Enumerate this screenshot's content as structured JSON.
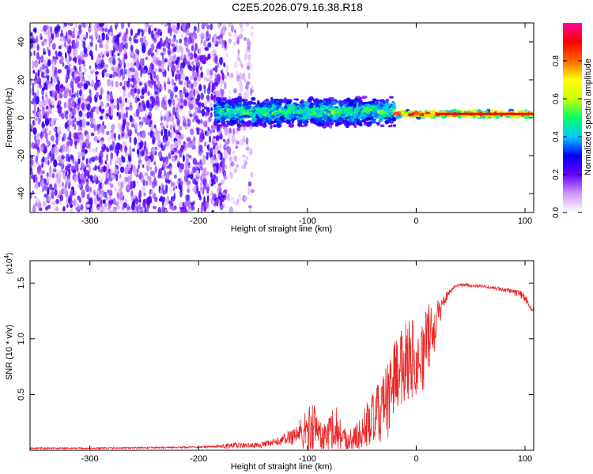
{
  "figure_title": "C2E5.2026.079.16.38.R18",
  "chart_data": [
    {
      "type": "heatmap",
      "title": "C2E5.2026.079.16.38.R18",
      "xlabel": "Height of straight line (km)",
      "ylabel": "Frequency (Hz)",
      "xlim": [
        -355,
        108
      ],
      "ylim": [
        -50,
        50
      ],
      "xticks": [
        -300,
        -200,
        -100,
        0,
        100
      ],
      "yticks": [
        -40,
        -20,
        0,
        20,
        40
      ],
      "colorbar": {
        "label": "Normalized spectral amplitude",
        "range": [
          0,
          1
        ],
        "ticks": [
          0.0,
          0.2,
          0.4,
          0.6,
          0.8
        ],
        "tick_labels": [
          "0.0",
          "0.2",
          "0.4",
          "0.6",
          "0.8"
        ],
        "colors": [
          "#ffffff",
          "#cc99ff",
          "#6600ff",
          "#0000ff",
          "#00ccff",
          "#00ff66",
          "#ccff00",
          "#ffff00",
          "#ff6600",
          "#ff0000",
          "#ff0099"
        ]
      },
      "regions": [
        {
          "x_range": [
            -355,
            -175
          ],
          "description": "broadband noise",
          "f_range": [
            -50,
            50
          ],
          "amplitude": 0.2
        },
        {
          "x_range": [
            -175,
            -150
          ],
          "description": "sparse noise",
          "f_range": [
            -50,
            50
          ],
          "amplitude": 0.12
        },
        {
          "x_range": [
            -185,
            -20
          ],
          "description": "signal band",
          "f_center": 3,
          "f_halfwidth": 8,
          "amplitude_peak": 0.5
        },
        {
          "x_range": [
            -20,
            108
          ],
          "description": "carrier line",
          "f_center": 2,
          "f_halfwidth": 2,
          "amplitude_peak": 0.9
        }
      ]
    },
    {
      "type": "line",
      "xlabel": "Height of straight line (km)",
      "ylabel": "SNR (10 * v/v)",
      "y_scale_label": "(x10",
      "y_scale_exponent": "4",
      "y_scale_suffix": ")",
      "xlim": [
        -355,
        108
      ],
      "ylim": [
        0,
        1.7
      ],
      "xticks": [
        -300,
        -200,
        -100,
        0,
        100
      ],
      "yticks": [
        0.5,
        1.0,
        1.5
      ],
      "ytick_labels": [
        "0.5",
        "1.0",
        "1.5"
      ],
      "series": [
        {
          "name": "SNR",
          "color": "#ee2222",
          "x": [
            -355,
            -300,
            -250,
            -200,
            -180,
            -170,
            -160,
            -150,
            -140,
            -130,
            -120,
            -110,
            -100,
            -95,
            -90,
            -85,
            -80,
            -75,
            -70,
            -65,
            -60,
            -55,
            -50,
            -45,
            -40,
            -35,
            -30,
            -25,
            -20,
            -15,
            -10,
            -5,
            0,
            5,
            10,
            15,
            20,
            25,
            30,
            35,
            40,
            50,
            60,
            70,
            80,
            90,
            95,
            100,
            105,
            108
          ],
          "y": [
            0.02,
            0.02,
            0.025,
            0.03,
            0.04,
            0.05,
            0.05,
            0.05,
            0.06,
            0.08,
            0.12,
            0.18,
            0.22,
            0.3,
            0.22,
            0.15,
            0.2,
            0.3,
            0.2,
            0.12,
            0.12,
            0.15,
            0.2,
            0.3,
            0.35,
            0.4,
            0.5,
            0.55,
            0.8,
            0.8,
            0.95,
            1.0,
            0.85,
            0.9,
            1.1,
            1.1,
            1.25,
            1.35,
            1.42,
            1.47,
            1.49,
            1.48,
            1.48,
            1.46,
            1.45,
            1.42,
            1.42,
            1.38,
            1.28,
            1.27
          ],
          "noise_amplitude": [
            0.01,
            0.01,
            0.01,
            0.01,
            0.02,
            0.05,
            0.03,
            0.03,
            0.04,
            0.05,
            0.08,
            0.15,
            0.3,
            0.35,
            0.25,
            0.2,
            0.25,
            0.3,
            0.25,
            0.18,
            0.18,
            0.2,
            0.25,
            0.3,
            0.35,
            0.4,
            0.45,
            0.5,
            0.5,
            0.45,
            0.55,
            0.6,
            0.4,
            0.45,
            0.5,
            0.35,
            0.2,
            0.1,
            0.04,
            0.02,
            0.02,
            0.02,
            0.02,
            0.02,
            0.03,
            0.04,
            0.05,
            0.05,
            0.03,
            0.02
          ]
        }
      ]
    }
  ]
}
